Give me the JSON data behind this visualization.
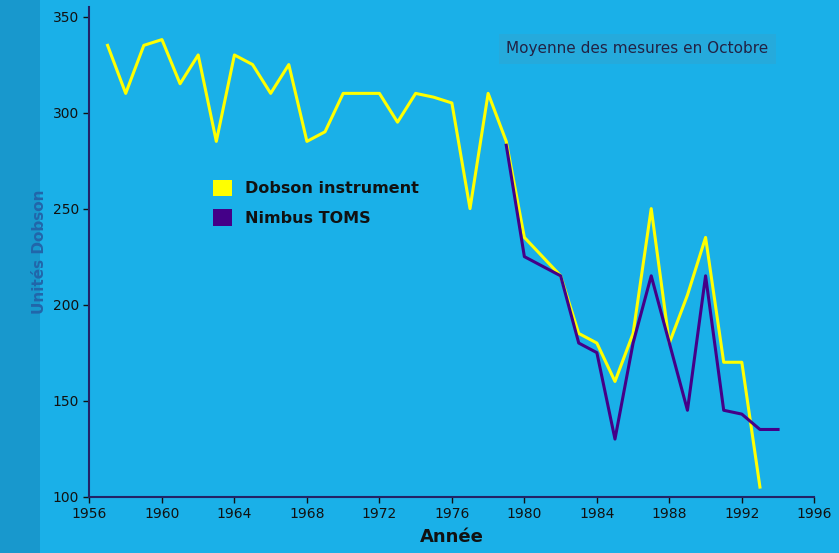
{
  "annotation": "Moyenne des mesures en Octobre",
  "xlabel": "Année",
  "ylabel": "Unités Dobson",
  "xlim": [
    1956,
    1996
  ],
  "ylim": [
    100,
    355
  ],
  "yticks": [
    100,
    150,
    200,
    250,
    300,
    350
  ],
  "xticks": [
    1956,
    1960,
    1964,
    1968,
    1972,
    1976,
    1980,
    1984,
    1988,
    1992,
    1996
  ],
  "bg_color": "#1ab0e8",
  "spine_color": "#222266",
  "tick_label_color": "#111111",
  "label_color": "#111111",
  "ylabel_color": "#2266aa",
  "annotation_box_color": "#2aa8d8",
  "dobson_color": "#ffff00",
  "toms_color": "#440088",
  "dobson_data_x": [
    1957,
    1958,
    1959,
    1960,
    1961,
    1962,
    1963,
    1964,
    1965,
    1966,
    1967,
    1968,
    1969,
    1970,
    1971,
    1972,
    1973,
    1974,
    1975,
    1976,
    1977,
    1978,
    1979,
    1980,
    1981,
    1982,
    1983,
    1984,
    1985,
    1986,
    1987,
    1988,
    1989,
    1990,
    1991,
    1992,
    1993
  ],
  "dobson_data_y": [
    335,
    310,
    335,
    338,
    315,
    330,
    285,
    330,
    325,
    310,
    325,
    285,
    290,
    310,
    310,
    310,
    295,
    310,
    308,
    305,
    250,
    310,
    285,
    235,
    225,
    215,
    185,
    180,
    160,
    185,
    250,
    180,
    205,
    235,
    170,
    170,
    105
  ],
  "toms_data_x": [
    1979,
    1980,
    1981,
    1982,
    1983,
    1984,
    1985,
    1986,
    1987,
    1988,
    1989,
    1990,
    1991,
    1992,
    1993,
    1994
  ],
  "toms_data_y": [
    283,
    225,
    220,
    215,
    180,
    175,
    130,
    180,
    215,
    180,
    145,
    215,
    145,
    143,
    135,
    135
  ],
  "line_width": 2.2,
  "sidebar_color": "#1888bb",
  "sidebar_alpha": 0.6
}
